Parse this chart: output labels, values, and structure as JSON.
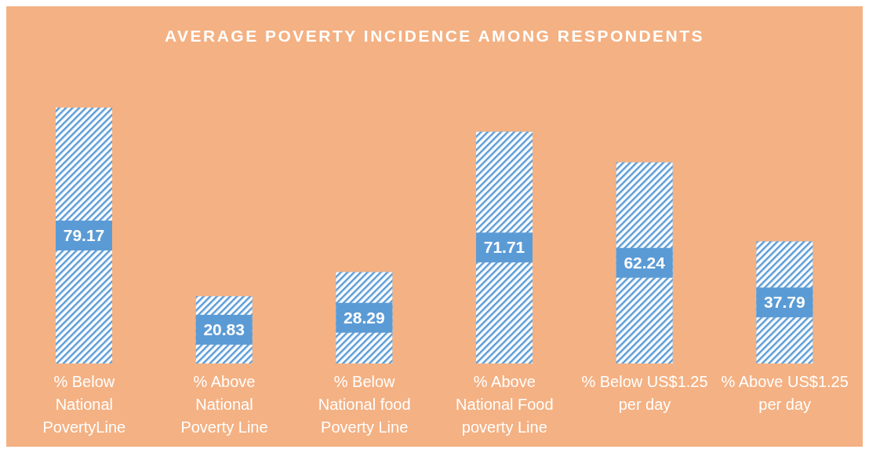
{
  "chart_data": {
    "type": "bar",
    "title": "AVERAGE POVERTY INCIDENCE AMONG RESPONDENTS",
    "categories": [
      "% Below National PovertyLine",
      "% Above National Poverty Line",
      "% Below National food Poverty Line",
      "% Above National Food poverty Line",
      "% Below US$1.25 per day",
      "% Above US$1.25 per day"
    ],
    "values": [
      79.17,
      20.83,
      28.29,
      71.71,
      62.24,
      37.79
    ],
    "color": "#5b9bd5",
    "data_labels": true
  }
}
